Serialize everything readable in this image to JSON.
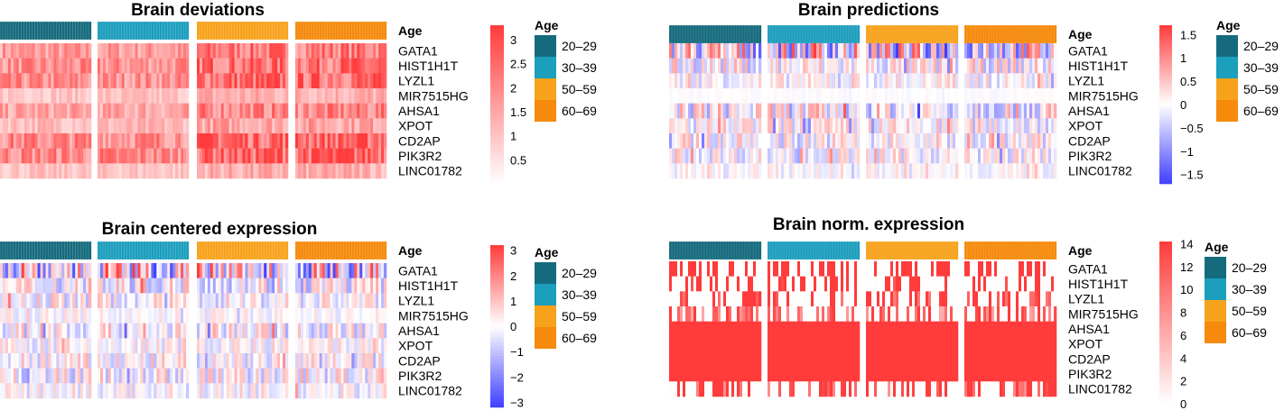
{
  "chart_data": [
    {
      "type": "heatmap",
      "title": "Brain deviations",
      "rows": [
        "GATA1",
        "HIST1H1T",
        "LYZL1",
        "MIR7515HG",
        "AHSA1",
        "XPOT",
        "CD2AP",
        "PIK3R2",
        "LINC01782"
      ],
      "annotation_label": "Age",
      "groups": [
        "20–29",
        "30–39",
        "50–59",
        "60–69"
      ],
      "colorbar": {
        "min": 0,
        "max": 3.3,
        "ticks": [
          0.5,
          1,
          1.5,
          2,
          2.5,
          3
        ],
        "tick_labels": [
          "0.5",
          "1",
          "1.5",
          "2",
          "2.5",
          "3"
        ]
      },
      "row_levels": [
        0.5,
        0.55,
        0.55,
        0.3,
        0.45,
        0.35,
        0.6,
        0.6,
        0.3
      ]
    },
    {
      "type": "heatmap",
      "title": "Brain predictions",
      "rows": [
        "GATA1",
        "HIST1H1T",
        "LYZL1",
        "MIR7515HG",
        "AHSA1",
        "XPOT",
        "CD2AP",
        "PIK3R2",
        "LINC01782"
      ],
      "annotation_label": "Age",
      "groups": [
        "20–29",
        "30–39",
        "50–59",
        "60–69"
      ],
      "colorbar": {
        "min": -1.7,
        "max": 1.7,
        "ticks": [
          1.5,
          1,
          0.5,
          0,
          -0.5,
          -1,
          -1.5
        ],
        "tick_labels": [
          "1.5",
          "1",
          "0.5",
          "0",
          "−0.5",
          "−1",
          "−1.5"
        ]
      },
      "row_levels": [
        0.9,
        0.45,
        0.3,
        0.05,
        0.55,
        0.4,
        0.4,
        0.35,
        0.2
      ]
    },
    {
      "type": "heatmap",
      "title": "Brain centered expression",
      "rows": [
        "GATA1",
        "HIST1H1T",
        "LYZL1",
        "MIR7515HG",
        "AHSA1",
        "XPOT",
        "CD2AP",
        "PIK3R2",
        "LINC01782"
      ],
      "annotation_label": "Age",
      "groups": [
        "20–29",
        "30–39",
        "50–59",
        "60–69"
      ],
      "colorbar": {
        "min": -3.2,
        "max": 3.2,
        "ticks": [
          3,
          2,
          1,
          0,
          -1,
          -2,
          -3
        ],
        "tick_labels": [
          "3",
          "2",
          "1",
          "0",
          "−1",
          "−2",
          "−3"
        ]
      },
      "row_levels": [
        0.95,
        0.5,
        0.4,
        0.2,
        0.45,
        0.3,
        0.4,
        0.45,
        0.3
      ]
    },
    {
      "type": "heatmap",
      "title": "Brain norm. expression",
      "rows": [
        "GATA1",
        "HIST1H1T",
        "LYZL1",
        "MIR7515HG",
        "AHSA1",
        "XPOT",
        "CD2AP",
        "PIK3R2",
        "LINC01782"
      ],
      "annotation_label": "Age",
      "groups": [
        "20–29",
        "30–39",
        "50–59",
        "60–69"
      ],
      "colorbar": {
        "min": 0,
        "max": 14.2,
        "ticks": [
          14,
          12,
          10,
          8,
          6,
          4,
          2,
          0
        ],
        "tick_labels": [
          "14",
          "12",
          "10",
          "8",
          "6",
          "4",
          "2",
          "0"
        ]
      },
      "row_levels": [
        3.5,
        1.5,
        1.2,
        0.8,
        13.5,
        13.5,
        13,
        13.5,
        1
      ]
    }
  ],
  "colors": {
    "age_groups": [
      "#156b7d",
      "#1c9ebd",
      "#f7a21b",
      "#f58a0c"
    ],
    "high": "#ff3b3b",
    "low": "#3f3fff",
    "mid": "#ffffff"
  }
}
